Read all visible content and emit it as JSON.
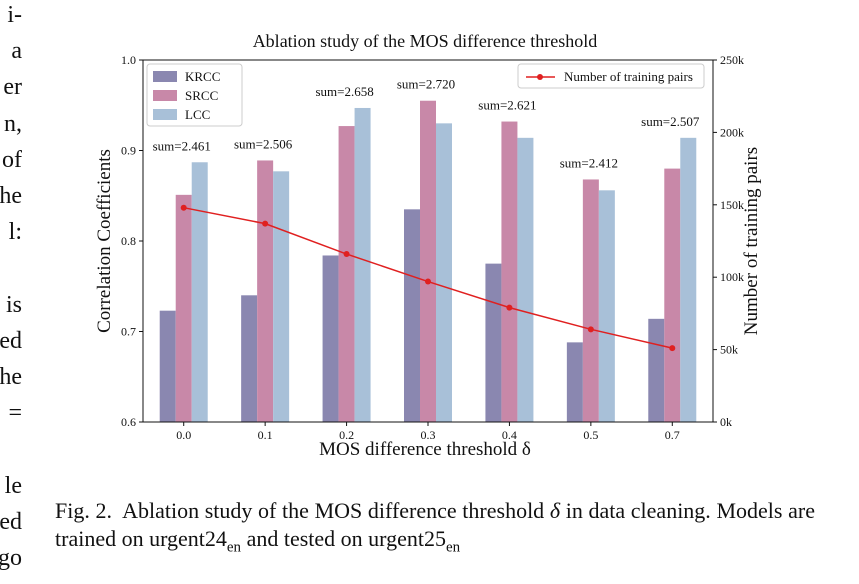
{
  "left_column_fragments": [
    "i-",
    "a",
    "er",
    "n,",
    "of",
    "he",
    "l:",
    "is",
    "ed",
    "he",
    "=",
    "le",
    "ed",
    "go"
  ],
  "caption": {
    "fig_label": "Fig. 2.",
    "text_1": "Ablation study of the MOS difference threshold",
    "symbol": "δ",
    "text_2": "in data cleaning. Models are trained on urgent24",
    "sub_1": "en",
    "text_3": "and tested on urgent25",
    "sub_2": "en"
  },
  "chart_data": {
    "type": "bar",
    "title": "Ablation study of the MOS difference threshold",
    "xlabel": "MOS difference threshold δ",
    "ylabel": "Correlation Coefficients",
    "ylabel_right": "Number of training pairs",
    "categories": [
      "0.0",
      "0.1",
      "0.2",
      "0.3",
      "0.4",
      "0.5",
      "0.7"
    ],
    "ylim": [
      0.6,
      1.0
    ],
    "yticks": [
      "0.6",
      "0.7",
      "0.8",
      "0.9",
      "1.0"
    ],
    "ylim_right": [
      0,
      250000
    ],
    "yticks_right": [
      "0k",
      "50k",
      "100k",
      "150k",
      "200k",
      "250k"
    ],
    "series": [
      {
        "name": "KRCC",
        "color": "#8a87b0",
        "values": [
          0.723,
          0.74,
          0.784,
          0.835,
          0.775,
          0.688,
          0.714
        ]
      },
      {
        "name": "SRCC",
        "color": "#c888a8",
        "values": [
          0.851,
          0.889,
          0.927,
          0.955,
          0.932,
          0.868,
          0.88
        ]
      },
      {
        "name": "LCC",
        "color": "#a8c0d8",
        "values": [
          0.887,
          0.877,
          0.947,
          0.93,
          0.914,
          0.856,
          0.914
        ]
      }
    ],
    "line_series": {
      "name": "Number of training pairs",
      "color": "#e02020",
      "values": [
        148000,
        137000,
        116000,
        97000,
        79000,
        64000,
        51000
      ]
    },
    "annotations": [
      "sum=2.461",
      "sum=2.506",
      "sum=2.658",
      "sum=2.720",
      "sum=2.621",
      "sum=2.412",
      "sum=2.507"
    ],
    "legend_left": "top-left",
    "legend_right": "top-right",
    "grid": false
  }
}
